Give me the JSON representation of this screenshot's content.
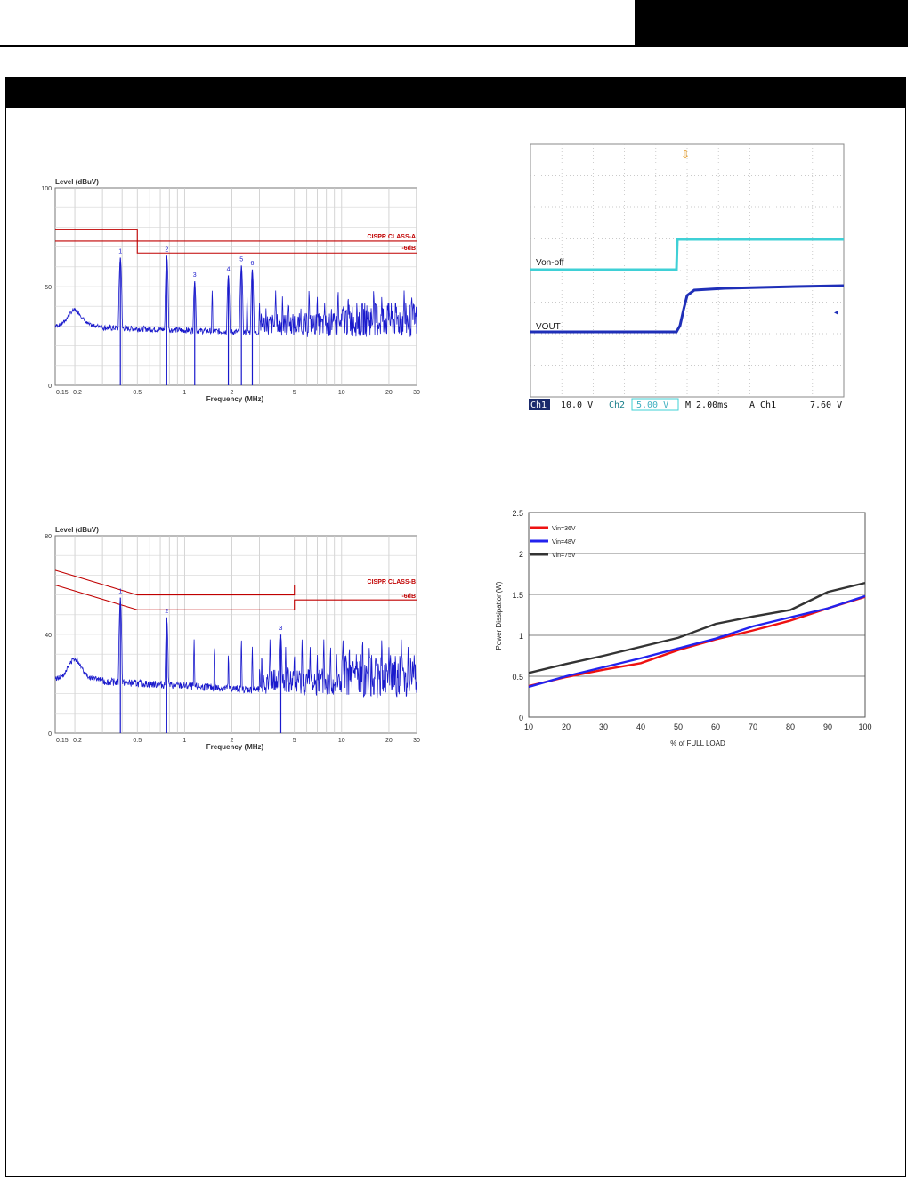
{
  "page": {
    "header_tab": "",
    "section_bar": ""
  },
  "chart_data": [
    {
      "type": "line",
      "ylabel": "Level (dBuV)",
      "xlabel": "Frequency (MHz)",
      "x_scale": "log",
      "xlim": [
        0.15,
        30
      ],
      "ylim": [
        0,
        100
      ],
      "x_ticks": [
        "0.15",
        "0.2",
        "0.5",
        "1",
        "2",
        "5",
        "10",
        "20",
        "30"
      ],
      "y_ticks": [
        "0",
        "50",
        "100"
      ],
      "limit_lines": [
        {
          "name": "CISPR CLASS-A",
          "x": [
            0.15,
            0.5,
            0.5,
            30
          ],
          "y": [
            79,
            79,
            73,
            73
          ]
        },
        {
          "name": "-6dB",
          "x": [
            0.15,
            0.5,
            0.5,
            30
          ],
          "y": [
            73,
            73,
            67,
            67
          ]
        }
      ],
      "peaks": [
        {
          "label": "1",
          "x": 0.39,
          "y": 66
        },
        {
          "label": "2",
          "x": 0.77,
          "y": 67
        },
        {
          "label": "3",
          "x": 1.16,
          "y": 54
        },
        {
          "label": "4",
          "x": 1.9,
          "y": 57
        },
        {
          "label": "5",
          "x": 2.3,
          "y": 62
        },
        {
          "label": "6",
          "x": 2.7,
          "y": 60
        }
      ],
      "colors": {
        "limit": "#c00000",
        "trace": "#1a1acc"
      }
    },
    {
      "type": "line",
      "ylabel": "Level (dBuV)",
      "xlabel": "Frequency (MHz)",
      "x_scale": "log",
      "xlim": [
        0.15,
        30
      ],
      "ylim": [
        0,
        80
      ],
      "x_ticks": [
        "0.15",
        "0.2",
        "0.5",
        "1",
        "2",
        "5",
        "10",
        "20",
        "30"
      ],
      "y_ticks": [
        "0",
        "40",
        "80"
      ],
      "limit_lines": [
        {
          "name": "CISPR CLASS-B",
          "x": [
            0.15,
            0.5,
            5,
            5,
            30
          ],
          "y": [
            66,
            56,
            56,
            60,
            60
          ]
        },
        {
          "name": "-6dB",
          "x": [
            0.15,
            0.5,
            5,
            5,
            30
          ],
          "y": [
            60,
            50,
            50,
            54,
            54
          ]
        }
      ],
      "peaks": [
        {
          "label": "1",
          "x": 0.39,
          "y": 56
        },
        {
          "label": "2",
          "x": 0.77,
          "y": 48
        },
        {
          "label": "3",
          "x": 4.1,
          "y": 41
        }
      ],
      "colors": {
        "limit": "#c00000",
        "trace": "#1a1acc"
      }
    },
    {
      "type": "line",
      "ylabel": "Power Dissipation(W)",
      "xlabel": "% of FULL LOAD",
      "xlim": [
        10,
        100
      ],
      "ylim": [
        0,
        2.5
      ],
      "x_ticks": [
        "10",
        "20",
        "30",
        "40",
        "50",
        "60",
        "70",
        "80",
        "90",
        "100"
      ],
      "y_ticks": [
        "0",
        "0.5",
        "1",
        "1.5",
        "2",
        "2.5"
      ],
      "legend_position": "top-left",
      "x": [
        10,
        20,
        30,
        40,
        50,
        60,
        70,
        80,
        90,
        100
      ],
      "series": [
        {
          "name": "Vin=36V",
          "color": "#ee1111",
          "values": [
            0.38,
            0.49,
            0.58,
            0.66,
            0.82,
            0.95,
            1.06,
            1.18,
            1.33,
            1.47
          ]
        },
        {
          "name": "Vin=48V",
          "color": "#2222ee",
          "values": [
            0.37,
            0.5,
            0.61,
            0.72,
            0.84,
            0.96,
            1.11,
            1.22,
            1.33,
            1.48
          ]
        },
        {
          "name": "Vin=75V",
          "color": "#333333",
          "values": [
            0.54,
            0.65,
            0.75,
            0.86,
            0.97,
            1.14,
            1.23,
            1.31,
            1.53,
            1.64
          ]
        }
      ]
    }
  ],
  "scope": {
    "labels": {
      "von_off": "Von-off",
      "vout": "VOUT"
    },
    "status": {
      "ch1": "Ch1",
      "ch1_scale": "10.0 V",
      "ch2": "Ch2",
      "ch2_scale": "5.00 V",
      "timebase": "M 2.00ms",
      "trigger": "A  Ch1",
      "trigger_level": "7.60 V"
    },
    "colors": {
      "ch1": "#1f2fb8",
      "ch2": "#3fd0d6",
      "background": "#ffffff"
    }
  }
}
